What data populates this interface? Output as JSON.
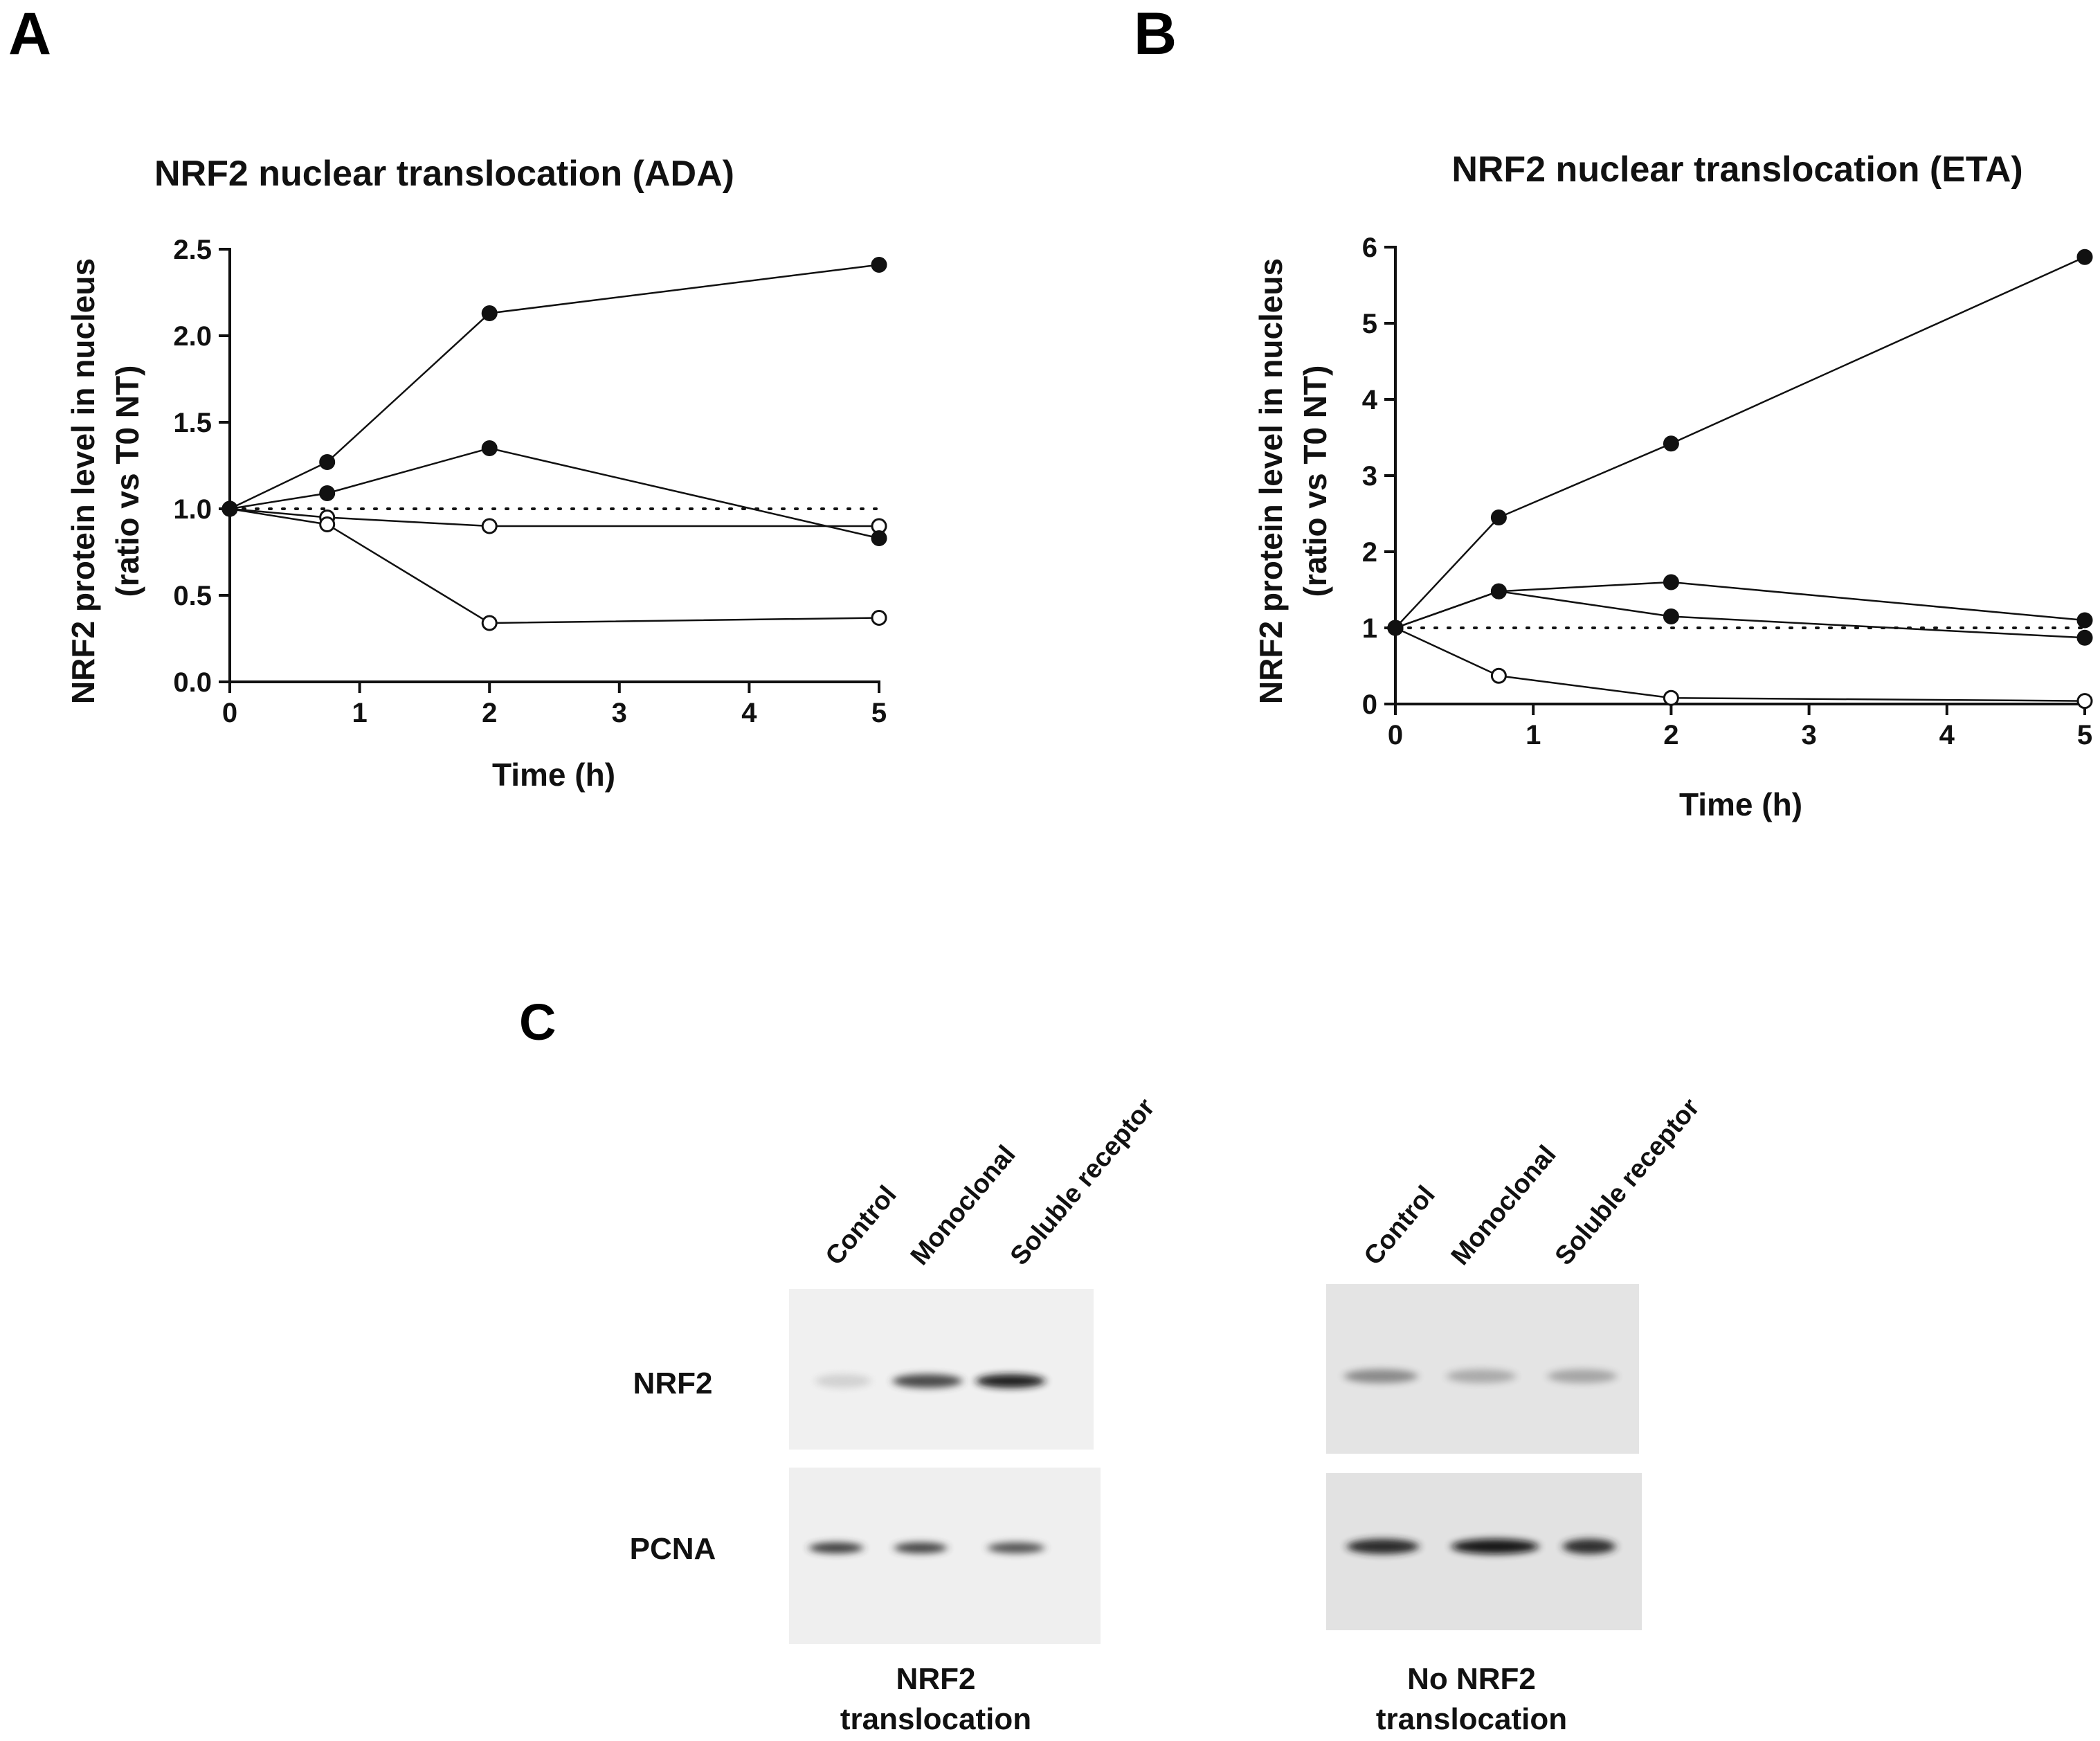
{
  "panels": {
    "a": "A",
    "b": "B",
    "c": "C"
  },
  "chart_data": [
    {
      "type": "line",
      "title": "NRF2 nuclear translocation (ADA)",
      "xlabel": "Time (h)",
      "ylabel_line1": "NRF2 protein level in nucleus",
      "ylabel_line2": "(ratio vs T0 NT)",
      "xlim": [
        0,
        5
      ],
      "ylim": [
        0,
        2.5
      ],
      "xticks": [
        "0",
        "1",
        "2",
        "3",
        "4",
        "5"
      ],
      "yticks": [
        "0.0",
        "0.5",
        "1.0",
        "1.5",
        "2.0",
        "2.5"
      ],
      "reference_line": 1.0,
      "series": [
        {
          "marker": "filled",
          "x": [
            0,
            0.75,
            2,
            5
          ],
          "y": [
            1.0,
            1.27,
            2.13,
            2.41
          ]
        },
        {
          "marker": "filled",
          "x": [
            0,
            0.75,
            2,
            5
          ],
          "y": [
            1.0,
            1.09,
            1.35,
            0.83
          ]
        },
        {
          "marker": "open",
          "x": [
            0,
            0.75,
            2,
            5
          ],
          "y": [
            1.0,
            0.95,
            0.9,
            0.9
          ]
        },
        {
          "marker": "open",
          "x": [
            0,
            0.75,
            2,
            5
          ],
          "y": [
            1.0,
            0.91,
            0.34,
            0.37
          ]
        }
      ]
    },
    {
      "type": "line",
      "title": "NRF2 nuclear translocation (ETA)",
      "xlabel": "Time (h)",
      "ylabel_line1": "NRF2 protein level in nucleus",
      "ylabel_line2": "(ratio vs T0 NT)",
      "xlim": [
        0,
        5
      ],
      "ylim": [
        0,
        6
      ],
      "xticks": [
        "0",
        "1",
        "2",
        "3",
        "4",
        "5"
      ],
      "yticks": [
        "0",
        "1",
        "2",
        "3",
        "4",
        "5",
        "6"
      ],
      "reference_line": 1.0,
      "series": [
        {
          "marker": "filled",
          "x": [
            0,
            0.75,
            2,
            5
          ],
          "y": [
            1.0,
            2.45,
            3.42,
            5.87
          ]
        },
        {
          "marker": "filled",
          "x": [
            0,
            0.75,
            2,
            5
          ],
          "y": [
            1.0,
            1.48,
            1.6,
            1.1
          ]
        },
        {
          "marker": "filled",
          "x": [
            0,
            0.75,
            2,
            5
          ],
          "y": [
            1.0,
            1.48,
            1.15,
            0.87
          ]
        },
        {
          "marker": "open",
          "x": [
            0,
            0.75,
            2,
            5
          ],
          "y": [
            1.0,
            0.37,
            0.08,
            0.04
          ]
        }
      ]
    }
  ],
  "blots": [
    {
      "lanes": [
        "Control",
        "Monoclonal",
        "Soluble receptor"
      ],
      "rows": [
        "NRF2",
        "PCNA"
      ],
      "caption_line1": "NRF2",
      "caption_line2": "translocation",
      "nrf2_band_intensity": [
        0.12,
        0.75,
        0.95
      ],
      "pcna_band_intensity": [
        0.8,
        0.78,
        0.7
      ]
    },
    {
      "lanes": [
        "Control",
        "Monoclonal",
        "Soluble receptor"
      ],
      "rows": [
        "NRF2",
        "PCNA"
      ],
      "caption_line1": "No NRF2",
      "caption_line2": "translocation",
      "nrf2_band_intensity": [
        0.45,
        0.3,
        0.32
      ],
      "pcna_band_intensity": [
        0.9,
        1.0,
        0.88
      ]
    }
  ],
  "colors": {
    "ink": "#111111",
    "marker_open_fill": "#ffffff",
    "blot_bg_a": "#f1f1f1",
    "blot_bg_b": "#e6e6e6"
  }
}
